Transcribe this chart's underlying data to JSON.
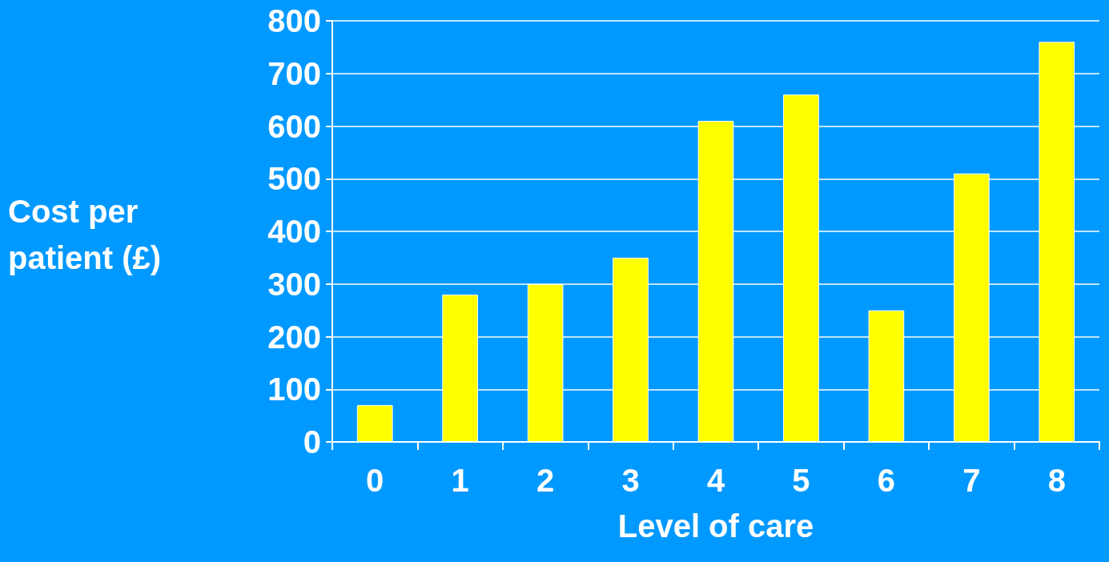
{
  "chart_data": {
    "type": "bar",
    "xlabel": "Level of care",
    "ylabel": "Cost per patient (£)",
    "categories": [
      "0",
      "1",
      "2",
      "3",
      "4",
      "5",
      "6",
      "7",
      "8"
    ],
    "values": [
      70,
      280,
      300,
      350,
      610,
      660,
      250,
      510,
      760
    ],
    "color": "#ffff00",
    "ylim": [
      0,
      800
    ],
    "yticks": [
      0,
      100,
      200,
      300,
      400,
      500,
      600,
      700,
      800
    ],
    "grid": "y"
  }
}
